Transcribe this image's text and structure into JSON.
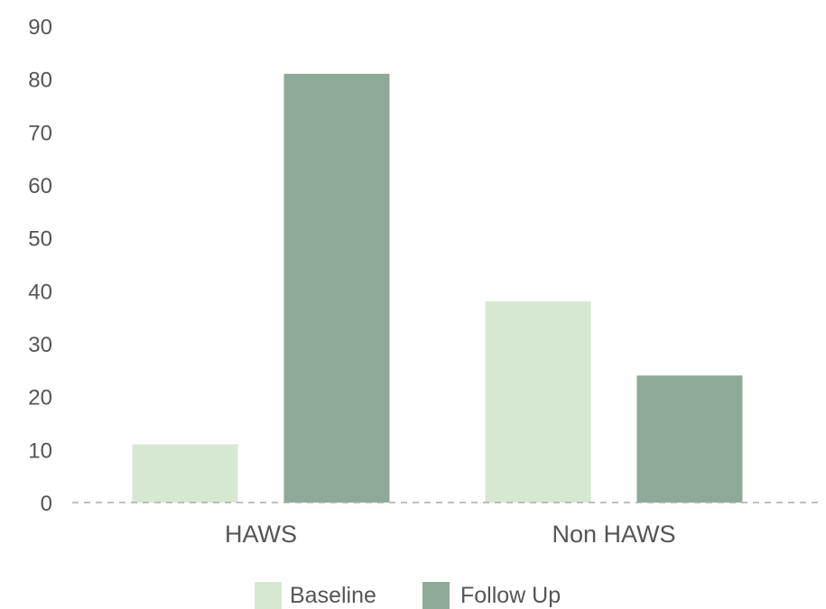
{
  "chart_data": {
    "type": "bar",
    "title": "",
    "xlabel": "",
    "ylabel": "",
    "categories": [
      "HAWS",
      "Non HAWS"
    ],
    "series": [
      {
        "name": "Baseline",
        "values": [
          11,
          38
        ],
        "color": "#d6e8d1"
      },
      {
        "name": "Follow Up",
        "values": [
          81,
          24
        ],
        "color": "#8ea998"
      }
    ],
    "ylim": [
      0,
      90
    ],
    "yticks": [
      0,
      10,
      20,
      30,
      40,
      50,
      60,
      70,
      80,
      90
    ],
    "grid": false,
    "baseline_style": "dashed",
    "legend_position": "bottom"
  }
}
